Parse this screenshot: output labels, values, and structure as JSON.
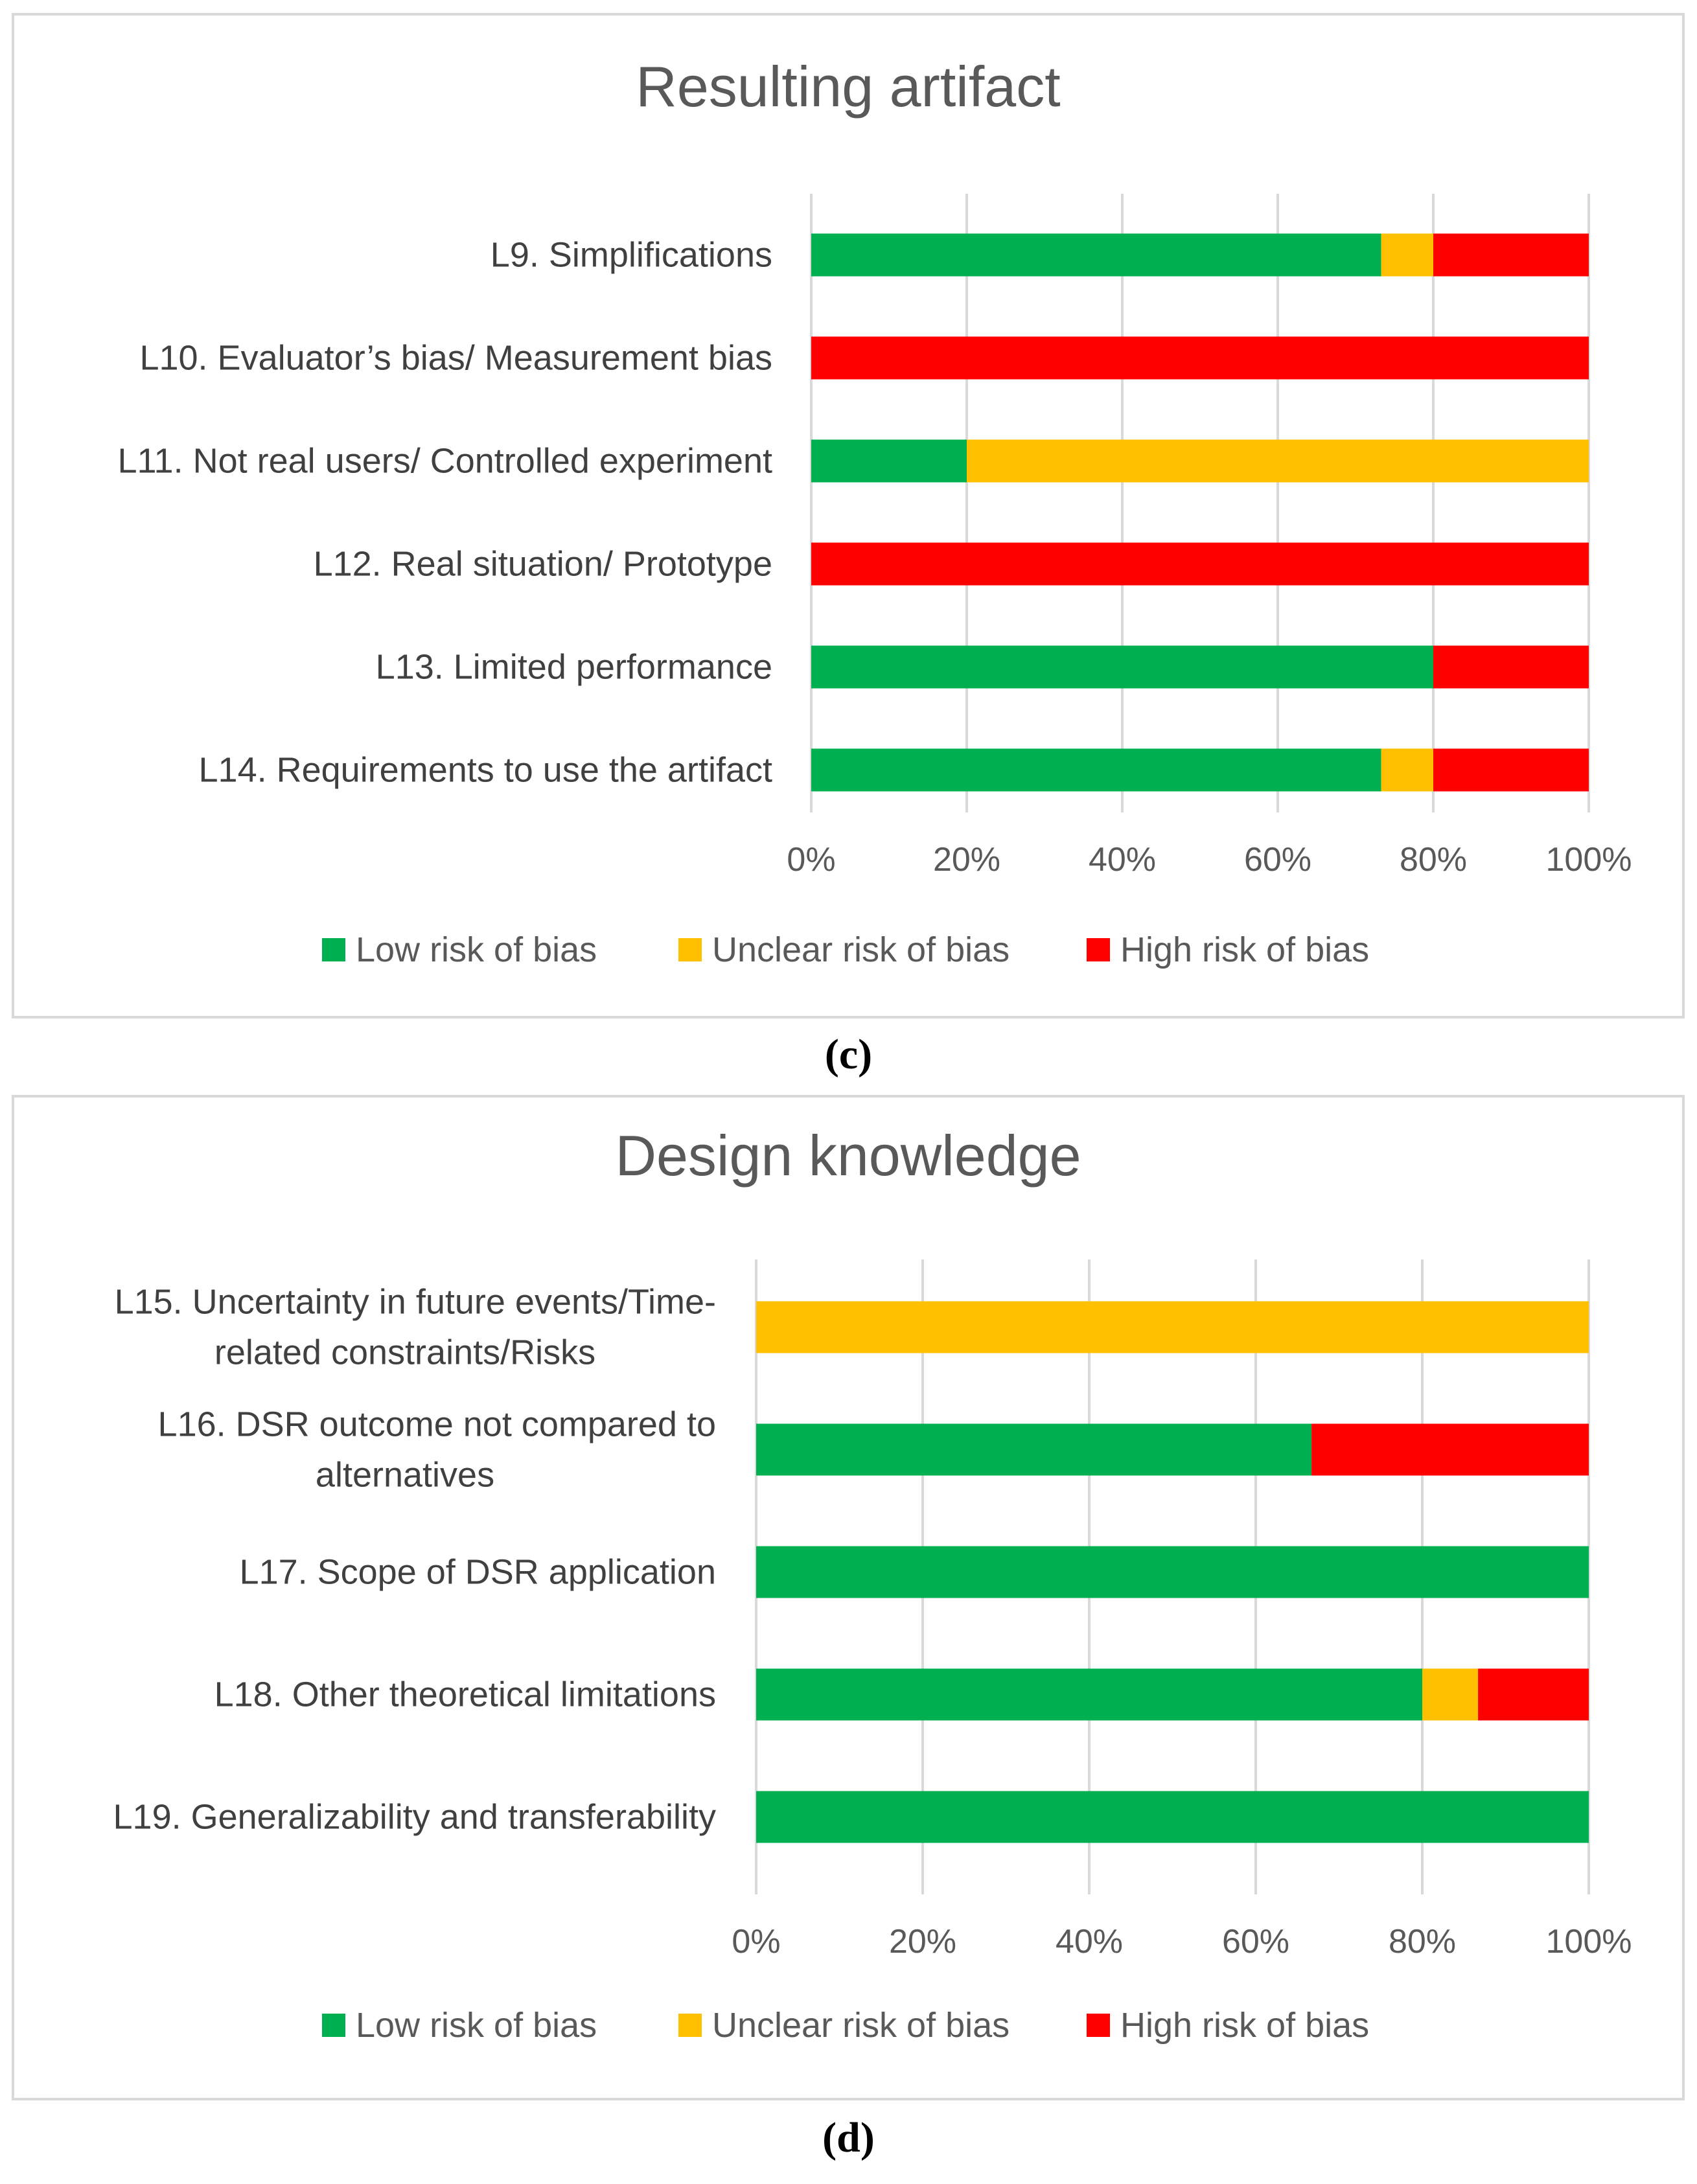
{
  "chart_data": [
    {
      "type": "bar",
      "orientation": "horizontal",
      "stacked": "percent",
      "title": "Resulting artifact",
      "categories": [
        "L9. Simplifications",
        "L10. Evaluator’s bias/ Measurement bias",
        "L11. Not real users/ Controlled experiment",
        "L12. Real situation/ Prototype",
        "L13. Limited performance",
        "L14. Requirements to use the artifact"
      ],
      "series": [
        {
          "name": "Low risk of bias",
          "color": "#00b050",
          "values": [
            73.3,
            0,
            20,
            0,
            80,
            73.3
          ]
        },
        {
          "name": "Unclear risk of bias",
          "color": "#ffc000",
          "values": [
            6.7,
            0,
            80,
            0,
            0,
            6.7
          ]
        },
        {
          "name": "High risk of bias",
          "color": "#ff0000",
          "values": [
            20,
            100,
            0,
            100,
            20,
            20
          ]
        }
      ],
      "xlim": [
        0,
        100
      ],
      "xticks": [
        "0%",
        "20%",
        "40%",
        "60%",
        "80%",
        "100%"
      ],
      "grid": true,
      "legend": "bottom",
      "caption": "(c)"
    },
    {
      "type": "bar",
      "orientation": "horizontal",
      "stacked": "percent",
      "title": "Design knowledge",
      "categories": [
        [
          "L15. Uncertainty in future events/Time-",
          "related constraints/Risks"
        ],
        [
          "L16. DSR outcome not compared to",
          "alternatives"
        ],
        [
          "L17. Scope of DSR application"
        ],
        [
          "L18. Other theoretical limitations"
        ],
        [
          "L19. Generalizability and transferability"
        ]
      ],
      "series": [
        {
          "name": "Low risk of bias",
          "color": "#00b050",
          "values": [
            0,
            66.7,
            100,
            80,
            100
          ]
        },
        {
          "name": "Unclear risk of bias",
          "color": "#ffc000",
          "values": [
            100,
            0,
            0,
            6.7,
            0
          ]
        },
        {
          "name": "High risk of bias",
          "color": "#ff0000",
          "values": [
            0,
            33.3,
            0,
            13.3,
            0
          ]
        }
      ],
      "xlim": [
        0,
        100
      ],
      "xticks": [
        "0%",
        "20%",
        "40%",
        "60%",
        "80%",
        "100%"
      ],
      "grid": true,
      "legend": "bottom",
      "caption": "(d)"
    }
  ]
}
